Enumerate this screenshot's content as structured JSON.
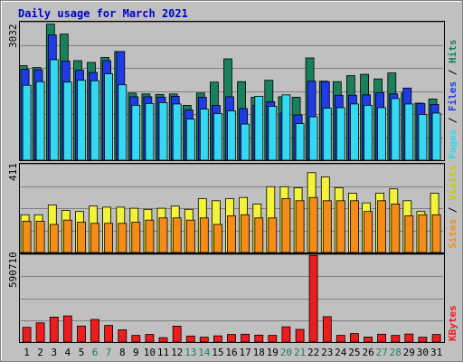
{
  "chart_data": {
    "type": "bar",
    "title": "Daily usage for March 2021",
    "categories": [
      "1",
      "2",
      "3",
      "4",
      "5",
      "6",
      "7",
      "8",
      "9",
      "10",
      "11",
      "12",
      "13",
      "14",
      "15",
      "16",
      "17",
      "18",
      "19",
      "20",
      "21",
      "22",
      "23",
      "24",
      "25",
      "26",
      "27",
      "28",
      "29",
      "30",
      "31"
    ],
    "weekend_days": [
      "6",
      "7",
      "13",
      "14",
      "20",
      "21",
      "27",
      "28"
    ],
    "panels": [
      {
        "id": "hits",
        "ymax": 3032,
        "ymax_label": "3032",
        "grid": true,
        "series": [
          {
            "name": "Hits",
            "color": "#1a8059",
            "values": [
              2070,
              2030,
              2980,
              2760,
              2180,
              2140,
              2250,
              2380,
              1470,
              1450,
              1440,
              1450,
              1200,
              1470,
              1710,
              2220,
              1720,
              1380,
              1750,
              1390,
              1380,
              2240,
              1730,
              1720,
              1850,
              1880,
              1780,
              1910,
              1470,
              1250,
              1340
            ]
          },
          {
            "name": "Files",
            "color": "#1f3be8",
            "values": [
              1990,
              1980,
              2740,
              2170,
              1970,
              1920,
              2180,
              2380,
              1390,
              1390,
              1380,
              1400,
              1100,
              1380,
              1200,
              1390,
              1130,
              1200,
              1280,
              1030,
              990,
              1730,
              1720,
              1420,
              1420,
              1430,
              1480,
              1450,
              1580,
              1240,
              1220
            ]
          },
          {
            "name": "Pages",
            "color": "#33d9f0",
            "values": [
              1640,
              1720,
              2200,
              1710,
              1750,
              1740,
              1890,
              1650,
              1200,
              1240,
              1260,
              1230,
              900,
              1120,
              1020,
              1080,
              790,
              1400,
              1180,
              1430,
              800,
              950,
              1140,
              1150,
              1230,
              1200,
              1150,
              1350,
              1230,
              1000,
              1030
            ]
          }
        ]
      },
      {
        "id": "visits",
        "ymax": 411,
        "ymax_label": "411",
        "grid": true,
        "series": [
          {
            "name": "Visits",
            "color": "#f3f338",
            "values": [
              175,
              175,
              220,
              195,
              190,
              215,
              210,
              210,
              205,
              200,
              205,
              215,
              200,
              250,
              240,
              250,
              255,
              225,
              305,
              305,
              300,
              370,
              350,
              300,
              275,
              230,
              275,
              295,
              240,
              190,
              275
            ]
          },
          {
            "name": "Sites",
            "color": "#f58c18",
            "values": [
              145,
              145,
              130,
              150,
              140,
              135,
              135,
              135,
              140,
              150,
              160,
              160,
              150,
              160,
              130,
              170,
              175,
              160,
              160,
              250,
              240,
              255,
              240,
              240,
              240,
              190,
              240,
              225,
              170,
              175,
              175
            ]
          }
        ]
      },
      {
        "id": "kbytes",
        "ymax": 590710,
        "ymax_label": "590710",
        "grid": true,
        "series": [
          {
            "name": "KBytes",
            "color": "#ee1c1c",
            "values": [
              99000,
              130000,
              168000,
              176000,
              108000,
              152000,
              112000,
              83000,
              45000,
              52000,
              30000,
              107000,
              41000,
              33000,
              42000,
              51000,
              53000,
              47000,
              45000,
              103000,
              85000,
              583000,
              171000,
              45000,
              57000,
              34000,
              53000,
              45000,
              54000,
              33000,
              51000
            ]
          }
        ]
      }
    ]
  }
}
